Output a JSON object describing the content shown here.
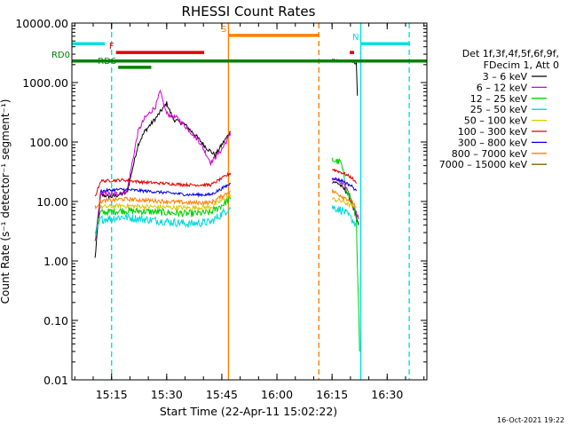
{
  "chart_data": {
    "type": "line",
    "title": "RHESSI Count Rates",
    "xlabel": "Start Time (22-Apr-11 15:02:22)",
    "ylabel": "Count Rate (s⁻¹ detector⁻¹ segment⁻¹)",
    "yscale": "log",
    "ylim": [
      0.01,
      10000
    ],
    "xlim_minutes": [
      15.07,
      16.68
    ],
    "x_ticks": [
      {
        "label": "15:15",
        "t": 15.25
      },
      {
        "label": "15:30",
        "t": 15.5
      },
      {
        "label": "15:45",
        "t": 15.75
      },
      {
        "label": "16:00",
        "t": 16.0
      },
      {
        "label": "16:15",
        "t": 16.25
      },
      {
        "label": "16:30",
        "t": 16.5
      }
    ],
    "y_ticks": [
      {
        "label": "10000.00",
        "v": 10000
      },
      {
        "label": "1000.00",
        "v": 1000
      },
      {
        "label": "100.00",
        "v": 100
      },
      {
        "label": "10.00",
        "v": 10
      },
      {
        "label": "1.00",
        "v": 1
      },
      {
        "label": "0.10",
        "v": 0.1
      },
      {
        "label": "0.01",
        "v": 0.01
      }
    ],
    "legend": {
      "position": "right",
      "header": [
        "Det 1f,3f,4f,5f,6f,9f,",
        "FDecim 1, Att 0"
      ],
      "entries": [
        {
          "label": "3 – 6 keV",
          "color": "#000000"
        },
        {
          "label": "6 – 12 keV",
          "color": "#d000d0"
        },
        {
          "label": "12 – 25 keV",
          "color": "#00d000"
        },
        {
          "label": "25 – 50 keV",
          "color": "#00d8d8"
        },
        {
          "label": "50 – 100 keV",
          "color": "#d8c800"
        },
        {
          "label": "100 – 300 keV",
          "color": "#e00000"
        },
        {
          "label": "300 – 800 keV",
          "color": "#0000e0"
        },
        {
          "label": "800 – 7000 keV",
          "color": "#ff8000"
        },
        {
          "label": "7000 – 15000 keV",
          "color": "#806000"
        }
      ]
    },
    "series": [
      {
        "name": "3 - 6 keV",
        "color": "#000000",
        "segments": [
          [
            [
              15.175,
              1.1
            ],
            [
              15.2,
              13
            ],
            [
              15.25,
              12
            ],
            [
              15.32,
              14
            ],
            [
              15.37,
              90
            ],
            [
              15.4,
              150
            ],
            [
              15.45,
              250
            ],
            [
              15.5,
              450
            ],
            [
              15.53,
              240
            ],
            [
              15.58,
              200
            ],
            [
              15.63,
              130
            ],
            [
              15.68,
              80
            ],
            [
              15.72,
              60
            ],
            [
              15.75,
              90
            ],
            [
              15.79,
              150
            ]
          ],
          [
            [
              16.25,
              22
            ],
            [
              16.28,
              20
            ],
            [
              16.32,
              14
            ],
            [
              16.34,
              9
            ],
            [
              16.37,
              4
            ]
          ]
        ]
      },
      {
        "name": "6 - 12 keV",
        "color": "#d000d0",
        "segments": [
          [
            [
              15.175,
              2
            ],
            [
              15.2,
              14
            ],
            [
              15.25,
              13
            ],
            [
              15.32,
              15
            ],
            [
              15.37,
              150
            ],
            [
              15.4,
              250
            ],
            [
              15.45,
              400
            ],
            [
              15.47,
              700
            ],
            [
              15.5,
              300
            ],
            [
              15.55,
              250
            ],
            [
              15.6,
              160
            ],
            [
              15.65,
              100
            ],
            [
              15.7,
              45
            ],
            [
              15.75,
              75
            ],
            [
              15.79,
              140
            ]
          ],
          [
            [
              16.25,
              25
            ],
            [
              16.28,
              22
            ],
            [
              16.32,
              16
            ],
            [
              16.34,
              10
            ],
            [
              16.37,
              5
            ]
          ]
        ]
      },
      {
        "name": "12 - 25 keV",
        "color": "#00d000",
        "segments": [
          [
            [
              15.175,
              3
            ],
            [
              15.2,
              6.5
            ],
            [
              15.3,
              7
            ],
            [
              15.4,
              6.8
            ],
            [
              15.5,
              6.5
            ],
            [
              15.6,
              6.2
            ],
            [
              15.7,
              6.5
            ],
            [
              15.79,
              11
            ]
          ],
          [
            [
              16.25,
              50
            ],
            [
              16.29,
              45
            ],
            [
              16.32,
              14
            ],
            [
              16.34,
              10
            ],
            [
              16.35,
              7
            ],
            [
              16.36,
              5
            ],
            [
              16.375,
              0.03
            ]
          ]
        ]
      },
      {
        "name": "25 - 50 keV",
        "color": "#00d8d8",
        "segments": [
          [
            [
              15.175,
              2.5
            ],
            [
              15.2,
              5
            ],
            [
              15.3,
              5.5
            ],
            [
              15.4,
              5
            ],
            [
              15.5,
              4.6
            ],
            [
              15.6,
              4.2
            ],
            [
              15.7,
              4.5
            ],
            [
              15.79,
              8
            ]
          ],
          [
            [
              16.25,
              8
            ],
            [
              16.3,
              7
            ],
            [
              16.34,
              5
            ],
            [
              16.36,
              4
            ]
          ]
        ]
      },
      {
        "name": "50 - 100 keV",
        "color": "#d8c800",
        "segments": [
          [
            [
              15.2,
              8
            ],
            [
              15.3,
              8.5
            ],
            [
              15.4,
              8.2
            ],
            [
              15.5,
              8
            ],
            [
              15.6,
              7.8
            ],
            [
              15.7,
              8
            ],
            [
              15.79,
              13
            ]
          ],
          [
            [
              16.25,
              11
            ],
            [
              16.3,
              10
            ],
            [
              16.35,
              8
            ]
          ]
        ]
      },
      {
        "name": "100 - 300 keV",
        "color": "#e00000",
        "segments": [
          [
            [
              15.175,
              12
            ],
            [
              15.2,
              22
            ],
            [
              15.3,
              23
            ],
            [
              15.4,
              21
            ],
            [
              15.5,
              20
            ],
            [
              15.6,
              19
            ],
            [
              15.7,
              19
            ],
            [
              15.79,
              30
            ]
          ],
          [
            [
              16.25,
              35
            ],
            [
              16.3,
              30
            ],
            [
              16.34,
              25
            ],
            [
              16.36,
              20
            ]
          ]
        ]
      },
      {
        "name": "300 - 800 keV",
        "color": "#0000e0",
        "segments": [
          [
            [
              15.2,
              15
            ],
            [
              15.3,
              16
            ],
            [
              15.4,
              15
            ],
            [
              15.5,
              14
            ],
            [
              15.6,
              13
            ],
            [
              15.7,
              13
            ],
            [
              15.79,
              20
            ]
          ],
          [
            [
              16.25,
              25
            ],
            [
              16.3,
              22
            ],
            [
              16.34,
              18
            ],
            [
              16.36,
              15
            ]
          ]
        ]
      },
      {
        "name": "800 - 7000 keV",
        "color": "#ff8000",
        "segments": [
          [
            [
              15.175,
              8
            ],
            [
              15.2,
              10
            ],
            [
              15.3,
              11
            ],
            [
              15.4,
              10.5
            ],
            [
              15.5,
              10
            ],
            [
              15.6,
              9.5
            ],
            [
              15.7,
              9.5
            ],
            [
              15.79,
              15
            ]
          ],
          [
            [
              16.25,
              15
            ],
            [
              16.3,
              12
            ],
            [
              16.34,
              10
            ],
            [
              16.36,
              8
            ]
          ]
        ]
      },
      {
        "name": "7000 - 15000 keV",
        "color": "#806000",
        "segments": []
      }
    ],
    "flare_curve": {
      "color": "#000000",
      "segments": [
        [
          [
            16.25,
            2400
          ],
          [
            16.3,
            2300
          ],
          [
            16.34,
            2200
          ],
          [
            16.36,
            2100
          ],
          [
            16.365,
            600
          ]
        ]
      ]
    },
    "state_bars": [
      {
        "label": "",
        "color": "#00e0e0",
        "value": 4500,
        "t0": 15.07,
        "t1": 15.22
      },
      {
        "label": "N",
        "color": "#00e0e0",
        "value": 4500,
        "t0": 16.38,
        "t1": 16.6
      },
      {
        "label": "F",
        "color": "#e00000",
        "value": 3200,
        "t0": 15.27,
        "t1": 15.67
      },
      {
        "label": "",
        "color": "#e00000",
        "value": 3200,
        "t0": 16.33,
        "t1": 16.35
      },
      {
        "label": "S",
        "color": "#ff8000",
        "value": 6200,
        "t0": 15.78,
        "t1": 16.19
      },
      {
        "label": "RD0",
        "color": "#008000",
        "value": 2300,
        "t0": 15.07,
        "t1": 16.68
      },
      {
        "label": "RD6",
        "color": "#008000",
        "value": 1800,
        "t0": 15.28,
        "t1": 15.43
      }
    ],
    "vertical_markers": [
      {
        "color": "#00e0e0",
        "style": "dashed",
        "t": 15.25
      },
      {
        "color": "#00e0e0",
        "style": "solid",
        "t": 16.38
      },
      {
        "color": "#00e0e0",
        "style": "dashed",
        "t": 16.6
      },
      {
        "color": "#ff8000",
        "style": "solid",
        "t": 15.78
      },
      {
        "color": "#ff8000",
        "style": "dashed",
        "t": 16.19
      }
    ],
    "footer_timestamp": "16-Oct-2021 19:22"
  }
}
